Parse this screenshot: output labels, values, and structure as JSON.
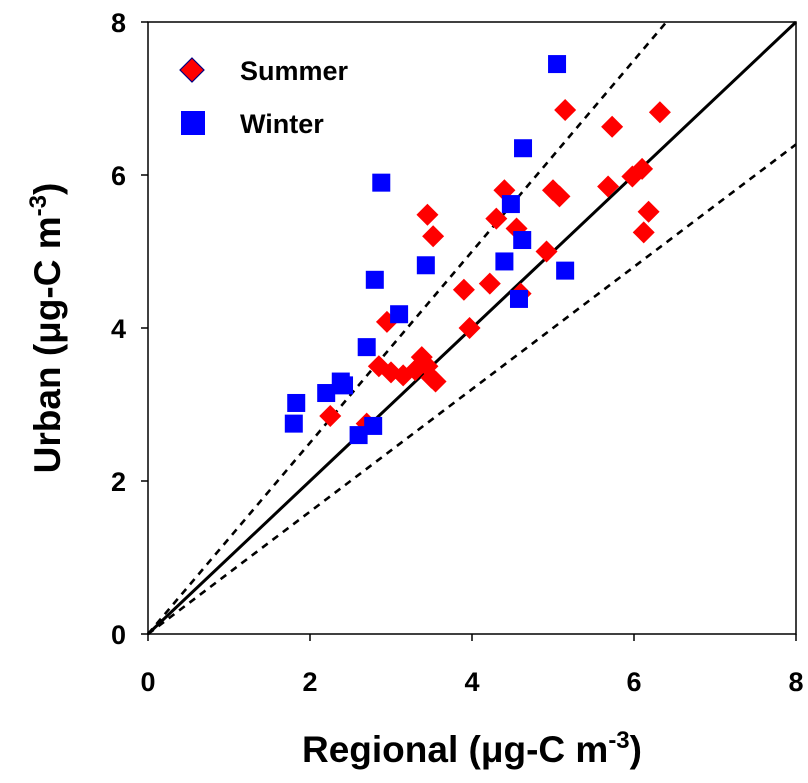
{
  "chart_data": {
    "type": "scatter",
    "xlabel": "Regional (μg-C m",
    "ylabel": "Urban (μg-C m",
    "unit_superscript": "-3",
    "unit_close": ")",
    "xlim": [
      0,
      8
    ],
    "ylim": [
      0,
      8
    ],
    "x_ticks": [
      "0",
      "2",
      "4",
      "6",
      "8"
    ],
    "y_ticks": [
      "0",
      "2",
      "4",
      "6",
      "8"
    ],
    "legend_position": "top-left",
    "lines": [
      {
        "style": "solid",
        "slope": 1.0
      },
      {
        "style": "dashed",
        "slope": 1.25
      },
      {
        "style": "dashed",
        "slope": 0.8
      }
    ],
    "series": [
      {
        "name": "Summer",
        "marker": "diamond",
        "color": "#ff0000",
        "points": [
          [
            2.25,
            2.85
          ],
          [
            2.7,
            2.75
          ],
          [
            2.85,
            3.5
          ],
          [
            2.95,
            4.08
          ],
          [
            3.0,
            3.42
          ],
          [
            3.15,
            3.38
          ],
          [
            3.3,
            3.45
          ],
          [
            3.38,
            3.62
          ],
          [
            3.45,
            3.5
          ],
          [
            3.5,
            3.35
          ],
          [
            3.55,
            3.3
          ],
          [
            3.45,
            5.48
          ],
          [
            3.52,
            5.2
          ],
          [
            3.9,
            4.5
          ],
          [
            3.97,
            4.0
          ],
          [
            4.22,
            4.58
          ],
          [
            4.3,
            5.43
          ],
          [
            4.4,
            5.8
          ],
          [
            4.55,
            5.3
          ],
          [
            4.6,
            4.45
          ],
          [
            4.92,
            5.0
          ],
          [
            5.0,
            5.8
          ],
          [
            5.08,
            5.72
          ],
          [
            5.15,
            6.85
          ],
          [
            5.68,
            5.85
          ],
          [
            5.73,
            6.63
          ],
          [
            5.98,
            5.98
          ],
          [
            6.1,
            6.08
          ],
          [
            6.12,
            5.25
          ],
          [
            6.18,
            5.52
          ],
          [
            6.32,
            6.82
          ]
        ]
      },
      {
        "name": "Winter",
        "marker": "square",
        "color": "#0000ff",
        "points": [
          [
            1.8,
            2.75
          ],
          [
            1.83,
            3.02
          ],
          [
            2.2,
            3.15
          ],
          [
            2.38,
            3.3
          ],
          [
            2.42,
            3.25
          ],
          [
            2.6,
            2.6
          ],
          [
            2.7,
            3.75
          ],
          [
            2.78,
            2.72
          ],
          [
            2.8,
            4.63
          ],
          [
            2.88,
            5.9
          ],
          [
            3.1,
            4.18
          ],
          [
            3.43,
            4.82
          ],
          [
            4.4,
            4.87
          ],
          [
            4.48,
            5.62
          ],
          [
            4.58,
            4.38
          ],
          [
            4.62,
            5.15
          ],
          [
            4.63,
            6.35
          ],
          [
            5.05,
            7.45
          ],
          [
            5.15,
            4.75
          ]
        ]
      }
    ]
  }
}
